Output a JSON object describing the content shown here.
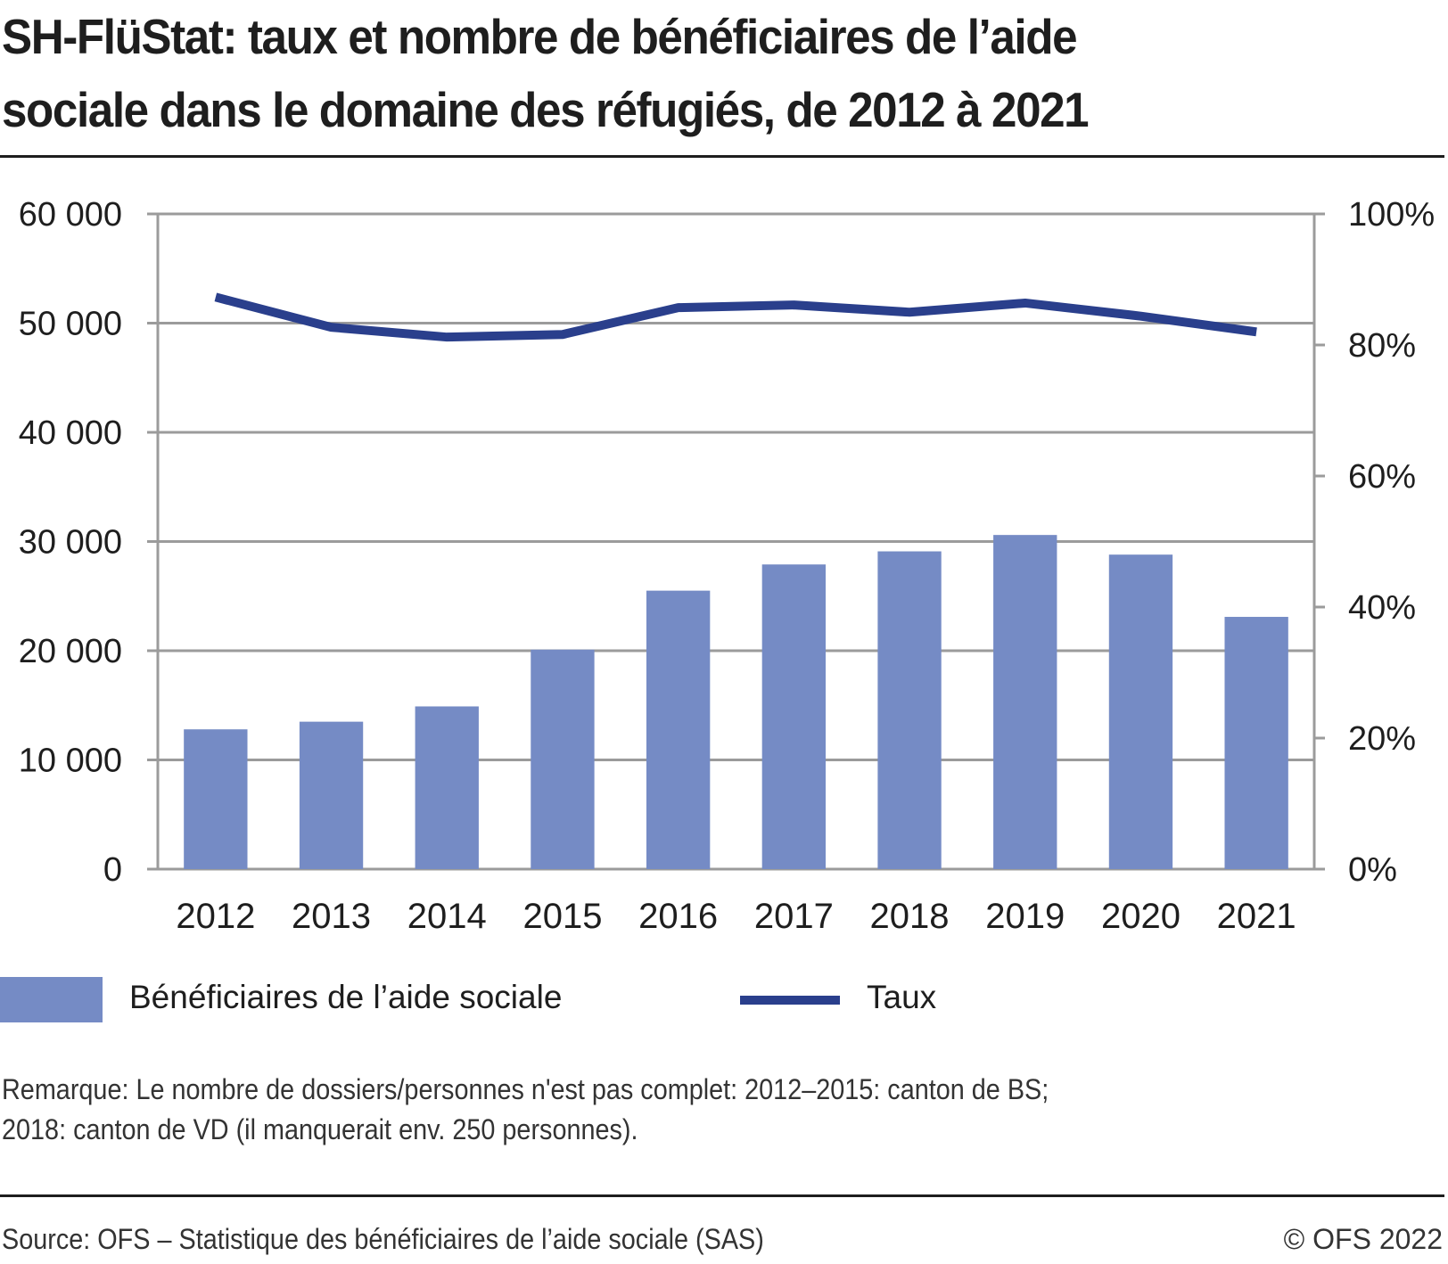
{
  "header": {
    "title_line1": "SH-FlüStat: taux et nombre de bénéficiaires de l’aide",
    "title_line2": "sociale dans le domaine des réfugiés, de 2012 à 2021"
  },
  "legend": {
    "bars_label": "Bénéficiaires de l’aide sociale",
    "line_label": "Taux"
  },
  "footer": {
    "remark_line1": "Remarque: Le nombre de dossiers/personnes n'est pas complet: 2012–2015: canton de BS;",
    "remark_line2": "2018: canton de VD (il manquerait env. 250 personnes).",
    "source": "Source: OFS – Statistique des bénéficiaires de l’aide sociale (SAS)",
    "copyright": "© OFS 2022"
  },
  "colors": {
    "bars": "#758bc5",
    "line": "#2a3f8c",
    "grid": "#9b9b9b"
  },
  "chart_data": {
    "type": "bar",
    "title": "SH-FlüStat: taux et nombre de bénéficiaires de l’aide sociale dans le domaine des réfugiés, de 2012 à 2021",
    "categories": [
      "2012",
      "2013",
      "2014",
      "2015",
      "2016",
      "2017",
      "2018",
      "2019",
      "2020",
      "2021"
    ],
    "series": [
      {
        "name": "Bénéficiaires de l’aide sociale",
        "type": "bar",
        "axis": "left",
        "values": [
          12800,
          13500,
          14900,
          20100,
          25500,
          27900,
          29100,
          30600,
          28800,
          23100
        ]
      },
      {
        "name": "Taux",
        "type": "line",
        "axis": "right",
        "unit": "%",
        "values": [
          87.3,
          82.7,
          81.2,
          81.6,
          85.7,
          86.1,
          85.0,
          86.4,
          84.4,
          82.0
        ]
      }
    ],
    "left_axis": {
      "ylim": [
        0,
        60000
      ],
      "ticks": [
        0,
        10000,
        20000,
        30000,
        40000,
        50000,
        60000
      ],
      "tick_labels": [
        "0",
        "10 000",
        "20 000",
        "30 000",
        "40 000",
        "50 000",
        "60 000"
      ]
    },
    "right_axis": {
      "ylim": [
        0,
        100
      ],
      "ticks": [
        0,
        20,
        40,
        60,
        80,
        100
      ],
      "tick_labels": [
        "0%",
        "20%",
        "40%",
        "60%",
        "80%",
        "100%"
      ]
    },
    "xlabel": "",
    "ylabel": "",
    "grid": true,
    "legend_position": "bottom-left"
  }
}
